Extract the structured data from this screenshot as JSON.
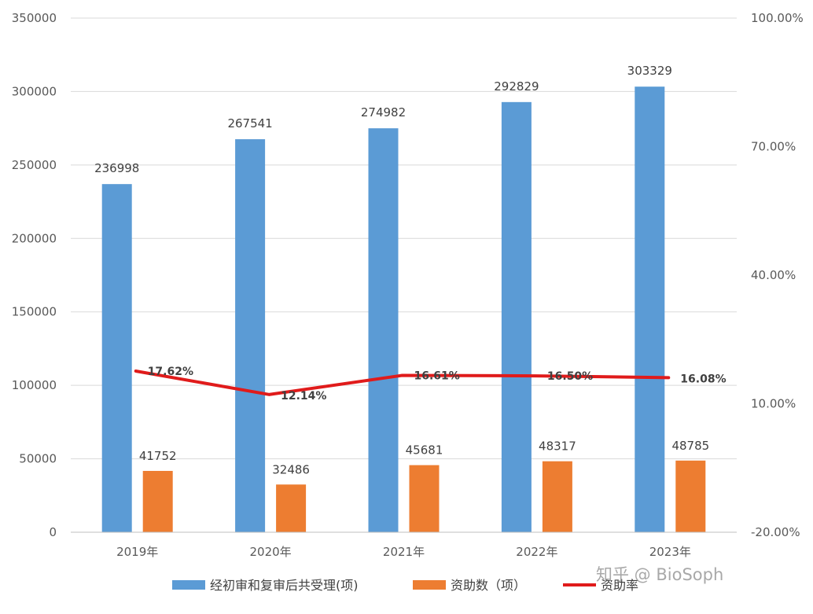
{
  "chart_data": {
    "type": "bar",
    "categories": [
      "2019年",
      "2020年",
      "2021年",
      "2022年",
      "2023年"
    ],
    "series": [
      {
        "name": "经初审和复审后共受理(项)",
        "type": "bar",
        "axis": "left",
        "color": "#5b9bd5",
        "values": [
          236998,
          267541,
          274982,
          292829,
          303329
        ],
        "labels": [
          "236998",
          "267541",
          "274982",
          "292829",
          "303329"
        ]
      },
      {
        "name": "资助数（项）",
        "type": "bar",
        "axis": "left",
        "color": "#ed7d31",
        "values": [
          41752,
          32486,
          45681,
          48317,
          48785
        ],
        "labels": [
          "41752",
          "32486",
          "45681",
          "48317",
          "48785"
        ]
      },
      {
        "name": "资助率",
        "type": "line",
        "axis": "right",
        "color": "#e01b1b",
        "values": [
          17.62,
          12.14,
          16.61,
          16.5,
          16.08
        ],
        "labels": [
          "17.62%",
          "12.14%",
          "16.61%",
          "16.50%",
          "16.08%"
        ]
      }
    ],
    "y_left": {
      "ylim": [
        0,
        350000
      ],
      "ticks": [
        "0",
        "50000",
        "100000",
        "150000",
        "200000",
        "250000",
        "300000",
        "350000"
      ]
    },
    "y_right": {
      "ylim": [
        -20,
        100
      ],
      "ticks": [
        "-20.00%",
        "10.00%",
        "40.00%",
        "70.00%",
        "100.00%"
      ]
    },
    "grid": true,
    "legend_position": "bottom"
  },
  "watermark": "知乎 @ BioSoph",
  "colors": {
    "gridline": "#d9d9d9",
    "axis": "#bfbfbf"
  }
}
